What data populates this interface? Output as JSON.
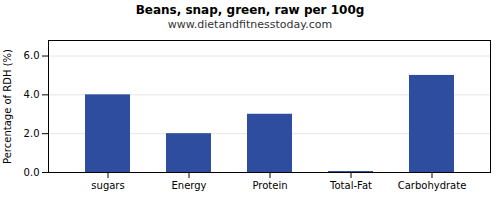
{
  "chart_data": {
    "type": "bar",
    "title": "Beans, snap, green, raw per 100g",
    "subtitle": "www.dietandfitnesstoday.com",
    "categories": [
      "sugars",
      "Energy",
      "Protein",
      "Total-Fat",
      "Carbohydrate"
    ],
    "values": [
      4.0,
      2.0,
      3.0,
      0.05,
      5.0
    ],
    "color": "#2e4d9e",
    "ylabel": "Percentage of RDH (%)",
    "ylim": [
      0,
      6.8
    ],
    "yticks": [
      0,
      2,
      4,
      6
    ],
    "grid": true
  }
}
